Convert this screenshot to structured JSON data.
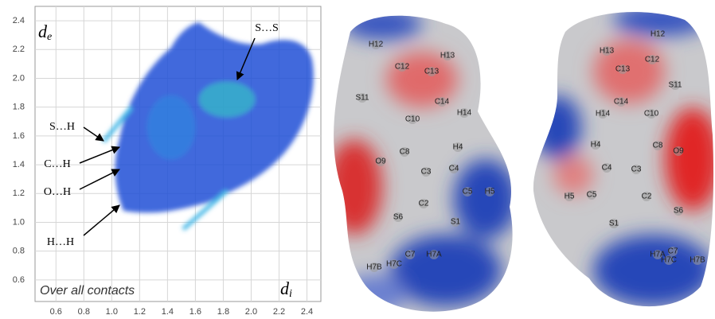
{
  "chart_data": {
    "type": "fingerprint",
    "title": "Over all contacts",
    "x_label": {
      "base": "d",
      "sub": "i"
    },
    "y_label": {
      "base": "d",
      "sub": "e"
    },
    "xlim": [
      0.45,
      2.5
    ],
    "ylim": [
      0.45,
      2.5
    ],
    "xticks": [
      0.6,
      0.8,
      {
        "value": 1,
        "label": "1.0"
      },
      1.2,
      1.4,
      1.6,
      1.8,
      {
        "value": 2,
        "label": "2.0"
      },
      2.2,
      2.4
    ],
    "yticks": [
      0.6,
      0.8,
      {
        "value": 1,
        "label": "1.0"
      },
      1.2,
      1.4,
      1.6,
      1.8,
      {
        "value": 2,
        "label": "2.0"
      },
      2.2,
      2.4
    ],
    "grid": true,
    "color": "#1f4fd6",
    "annotations": [
      "S…S",
      "S…H",
      "C…H",
      "O…H",
      "H…H"
    ]
  },
  "molecules": [
    {
      "atoms": [
        "H12",
        "H13",
        "C12",
        "C13",
        "C14",
        "H14",
        "S11",
        "C10",
        "C8",
        "H4",
        "O9",
        "C3",
        "C4",
        "C2",
        "C5",
        "H5",
        "S6",
        "S1",
        "C7",
        "H7A",
        "H7C",
        "H7B"
      ]
    },
    {
      "atoms": [
        "H12",
        "H13",
        "C12",
        "C13",
        "S11",
        "C14",
        "H14",
        "C10",
        "C8",
        "H4",
        "O9",
        "C4",
        "C3",
        "H5",
        "C5",
        "C2",
        "S6",
        "S1",
        "C7",
        "H7A",
        "H7C",
        "H7B"
      ]
    }
  ]
}
